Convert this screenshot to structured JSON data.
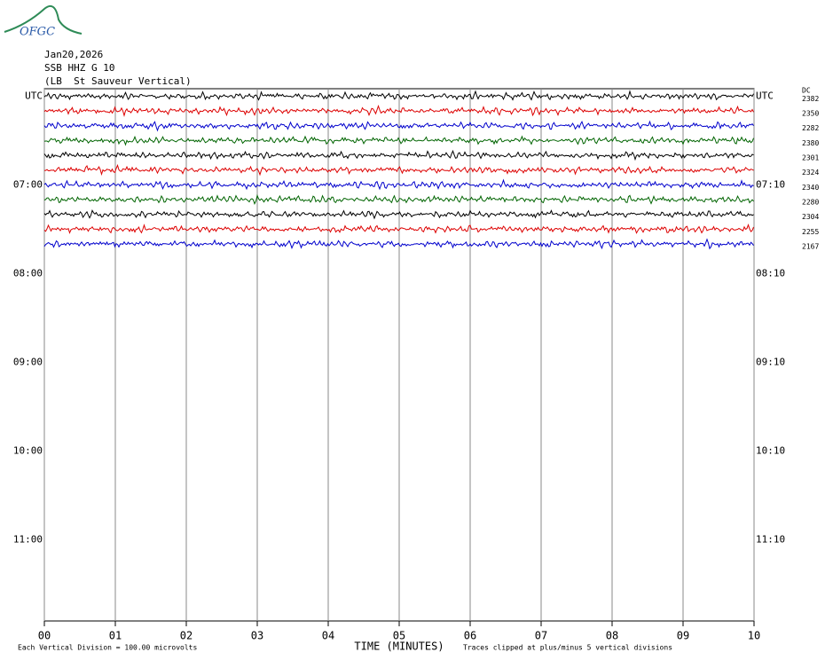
{
  "header": {
    "logo": "OFGC",
    "date": "Jan20,2026",
    "station": "SSB HHZ G 10",
    "location": "(LB  St Sauveur Vertical)"
  },
  "chart_data": {
    "type": "helicorder",
    "xlabel": "TIME (MINUTES)",
    "xlim": [
      0,
      10
    ],
    "xticks": [
      {
        "value": 0,
        "label": "00"
      },
      {
        "value": 1,
        "label": "01"
      },
      {
        "value": 2,
        "label": "02"
      },
      {
        "value": 3,
        "label": "03"
      },
      {
        "value": 4,
        "label": "04"
      },
      {
        "value": 5,
        "label": "05"
      },
      {
        "value": 6,
        "label": "06"
      },
      {
        "value": 7,
        "label": "07"
      },
      {
        "value": 8,
        "label": "08"
      },
      {
        "value": 9,
        "label": "09"
      },
      {
        "value": 10,
        "label": "10"
      }
    ],
    "grid": true,
    "left_labels": [
      "UTC",
      "07:00",
      "08:00",
      "09:00",
      "10:00",
      "11:00"
    ],
    "right_labels": [
      "UTC",
      "07:10",
      "08:10",
      "09:10",
      "10:10",
      "11:10"
    ],
    "dc_label": "DC",
    "dc_values": [
      2382,
      2350,
      2282,
      2380,
      2301,
      2324,
      2340,
      2280,
      2304,
      2255,
      2167
    ],
    "trace_colors": [
      "#000000",
      "#dd0000",
      "#0000cc",
      "#006400"
    ],
    "footnote_left": "Each Vertical Division =  100.00 microvolts",
    "footnote_right": "Traces clipped at plus/minus 5 vertical divisions"
  }
}
